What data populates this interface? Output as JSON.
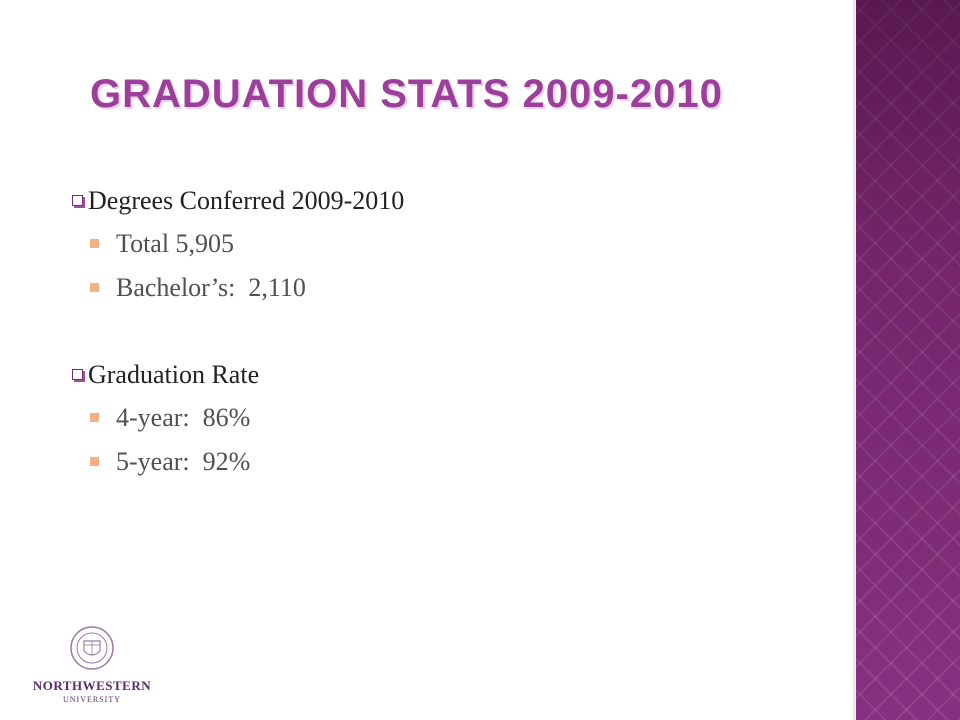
{
  "slide": {
    "title": "Graduation Stats 2009-2010",
    "sections": [
      {
        "heading": "Degrees Conferred 2009-2010",
        "items": [
          "Total 5,905",
          "Bachelor’s:  2,110"
        ]
      },
      {
        "heading": "Graduation Rate",
        "items": [
          "4-year:  86%",
          "5-year:  92%"
        ]
      }
    ]
  },
  "logo": {
    "name": "NORTHWESTERN",
    "sub": "UNIVERSITY",
    "icon": "university-seal-icon"
  },
  "colors": {
    "title": "#9c3f9a",
    "panel": "#7b2a73",
    "sub_bullet": "#f4b183"
  }
}
